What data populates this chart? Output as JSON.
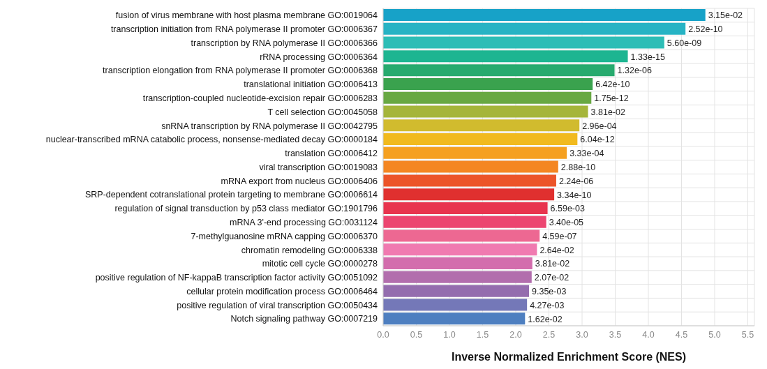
{
  "chart_data": {
    "type": "bar",
    "orientation": "horizontal",
    "xlabel": "Inverse Normalized Enrichment Score (NES)",
    "categories": [
      "fusion of virus membrane with host plasma membrane  GO:0019064",
      "transcription initiation from RNA polymerase II promoter  GO:0006367",
      "transcription by RNA polymerase II  GO:0006366",
      "rRNA processing  GO:0006364",
      "transcription elongation from RNA polymerase II promoter  GO:0006368",
      "translational initiation  GO:0006413",
      "transcription-coupled nucleotide-excision repair  GO:0006283",
      "T cell selection  GO:0045058",
      "snRNA transcription by RNA polymerase II  GO:0042795",
      "nuclear-transcribed mRNA catabolic process, nonsense-mediated decay  GO:0000184",
      "translation  GO:0006412",
      "viral transcription  GO:0019083",
      "mRNA export from nucleus  GO:0006406",
      "SRP-dependent cotranslational protein targeting to membrane  GO:0006614",
      "regulation of signal transduction by p53 class mediator  GO:1901796",
      "mRNA 3'-end processing  GO:0031124",
      "7-methylguanosine mRNA capping  GO:0006370",
      "chromatin remodeling  GO:0006338",
      "mitotic cell cycle  GO:0000278",
      "positive regulation of NF-kappaB transcription factor activity  GO:0051092",
      "cellular protein modification process  GO:0006464",
      "positive regulation of viral transcription  GO:0050434",
      "Notch signaling pathway  GO:0007219"
    ],
    "values": [
      4.86,
      4.56,
      4.24,
      3.69,
      3.49,
      3.16,
      3.14,
      3.09,
      2.96,
      2.93,
      2.77,
      2.64,
      2.61,
      2.58,
      2.48,
      2.46,
      2.36,
      2.32,
      2.25,
      2.24,
      2.2,
      2.17,
      2.14
    ],
    "annotations": [
      {
        "text": "3.15e-02",
        "x": 4.86,
        "y": "fusion of virus membrane with host plasma membrane  GO:0019064"
      },
      {
        "text": "2.52e-10",
        "x": 4.56,
        "y": "transcription initiation from RNA polymerase II promoter  GO:0006367"
      },
      {
        "text": "5.60e-09",
        "x": 4.24,
        "y": "transcription by RNA polymerase II  GO:0006366"
      },
      {
        "text": "1.33e-15",
        "x": 3.69,
        "y": "rRNA processing  GO:0006364"
      },
      {
        "text": "1.32e-06",
        "x": 3.49,
        "y": "transcription elongation from RNA polymerase II promoter  GO:0006368"
      },
      {
        "text": "6.42e-10",
        "x": 3.16,
        "y": "translational initiation  GO:0006413"
      },
      {
        "text": "1.75e-12",
        "x": 3.14,
        "y": "transcription-coupled nucleotide-excision repair  GO:0006283"
      },
      {
        "text": "3.81e-02",
        "x": 3.09,
        "y": "T cell selection  GO:0045058"
      },
      {
        "text": "2.96e-04",
        "x": 2.96,
        "y": "snRNA transcription by RNA polymerase II  GO:0042795"
      },
      {
        "text": "6.04e-12",
        "x": 2.93,
        "y": "nuclear-transcribed mRNA catabolic process, nonsense-mediated decay  GO:0000184"
      },
      {
        "text": "3.33e-04",
        "x": 2.77,
        "y": "translation  GO:0006412"
      },
      {
        "text": "2.88e-10",
        "x": 2.64,
        "y": "viral transcription  GO:0019083"
      },
      {
        "text": "2.24e-06",
        "x": 2.61,
        "y": "mRNA export from nucleus  GO:0006406"
      },
      {
        "text": "3.34e-10",
        "x": 2.58,
        "y": "SRP-dependent cotranslational protein targeting to membrane  GO:0006614"
      },
      {
        "text": "6.59e-03",
        "x": 2.48,
        "y": "regulation of signal transduction by p53 class mediator  GO:1901796"
      },
      {
        "text": "3.40e-05",
        "x": 2.46,
        "y": "mRNA 3'-end processing  GO:0031124"
      },
      {
        "text": "4.59e-07",
        "x": 2.36,
        "y": "7-methylguanosine mRNA capping  GO:0006370"
      },
      {
        "text": "2.64e-02",
        "x": 2.32,
        "y": "chromatin remodeling  GO:0006338"
      },
      {
        "text": "3.81e-02",
        "x": 2.25,
        "y": "mitotic cell cycle  GO:0000278"
      },
      {
        "text": "2.07e-02",
        "x": 2.24,
        "y": "positive regulation of NF-kappaB transcription factor activity  GO:0051092"
      },
      {
        "text": "9.35e-03",
        "x": 2.2,
        "y": "cellular protein modification process  GO:0006464"
      },
      {
        "text": "4.27e-03",
        "x": 2.17,
        "y": "positive regulation of viral transcription  GO:0050434"
      },
      {
        "text": "1.62e-02",
        "x": 2.14,
        "y": "Notch signaling pathway  GO:0007219"
      }
    ],
    "colors": [
      "#17a2c8",
      "#27b3c4",
      "#2dbdb6",
      "#1db591",
      "#27aa6e",
      "#3aa24e",
      "#68a843",
      "#a5b53a",
      "#d1bb2e",
      "#f1ba1e",
      "#f5a020",
      "#f48622",
      "#ec5429",
      "#e0302f",
      "#e8344e",
      "#ec4570",
      "#ed6892",
      "#f07ab0",
      "#d36dad",
      "#b26ead",
      "#946dae",
      "#7478b8",
      "#4e7fc0"
    ],
    "xlim": [
      0,
      5.6
    ],
    "xticks": [
      {
        "value": 0,
        "label": "0.0"
      },
      {
        "value": 0.5,
        "label": "0.5"
      },
      {
        "value": 1,
        "label": "1.0"
      },
      {
        "value": 1.5,
        "label": "1.5"
      },
      {
        "value": 2,
        "label": "2.0"
      },
      {
        "value": 2.5,
        "label": "2.5"
      },
      {
        "value": 3,
        "label": "3.0"
      },
      {
        "value": 3.5,
        "label": "3.5"
      },
      {
        "value": 4,
        "label": "4.0"
      },
      {
        "value": 4.5,
        "label": "4.5"
      },
      {
        "value": 5,
        "label": "5.0"
      },
      {
        "value": 5.5,
        "label": "5.5"
      }
    ],
    "grid": true
  }
}
